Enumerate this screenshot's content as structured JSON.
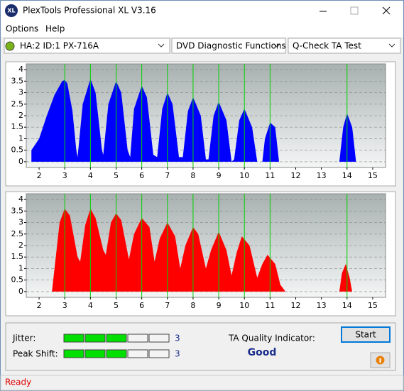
{
  "window": {
    "app_icon": "XL",
    "title": "PlexTools Professional XL V3.16",
    "menu": [
      "Options",
      "Help"
    ],
    "dropdowns": [
      "HA:2 ID:1  PX-716A",
      "DVD Diagnostic Functions",
      "Q-Check TA Test"
    ]
  },
  "chart_data": [
    {
      "type": "area",
      "color": "#0000ff",
      "marker_color": "#00d000",
      "grid": true,
      "xlim": [
        1.5,
        15.5
      ],
      "ylim": [
        -0.25,
        4.25
      ],
      "xticks": [
        2,
        3,
        4,
        5,
        6,
        7,
        8,
        9,
        10,
        11,
        12,
        13,
        14,
        15
      ],
      "yticks": [
        0,
        0.5,
        1,
        1.5,
        2,
        2.5,
        3,
        3.5,
        4
      ],
      "markers": [
        3,
        4,
        5,
        6,
        7,
        8,
        9,
        10,
        11,
        14
      ],
      "x": [
        1.7,
        2.0,
        2.3,
        2.6,
        2.9,
        3.0,
        3.1,
        3.3,
        3.45,
        3.5,
        3.7,
        4.0,
        4.2,
        4.45,
        4.5,
        4.7,
        5.0,
        5.2,
        5.45,
        5.55,
        5.7,
        6.0,
        6.2,
        6.45,
        6.6,
        6.8,
        7.0,
        7.2,
        7.45,
        7.6,
        7.8,
        8.0,
        8.3,
        8.5,
        8.6,
        8.8,
        9.0,
        9.3,
        9.5,
        9.6,
        9.8,
        10.0,
        10.3,
        10.5,
        10.7,
        10.8,
        11.0,
        11.2,
        11.35,
        13.7,
        13.85,
        14.0,
        14.2,
        14.35
      ],
      "values": [
        0.5,
        1.0,
        2.0,
        2.9,
        3.5,
        3.55,
        3.4,
        2.2,
        0.5,
        0.2,
        2.5,
        3.6,
        3.0,
        0.5,
        0.3,
        2.5,
        3.5,
        3.0,
        0.5,
        0.2,
        2.3,
        3.3,
        2.8,
        0.3,
        0.2,
        2.3,
        3.0,
        2.5,
        0.2,
        0.2,
        2.2,
        2.8,
        2.0,
        0.1,
        0.1,
        2.0,
        2.6,
        1.8,
        0,
        0.1,
        1.8,
        2.3,
        1.5,
        0,
        0,
        1.0,
        1.7,
        1.5,
        0,
        0,
        1.5,
        2.1,
        1.5,
        0
      ]
    },
    {
      "type": "area",
      "color": "#ff0000",
      "marker_color": "#00d000",
      "grid": true,
      "xlim": [
        1.5,
        15.5
      ],
      "ylim": [
        -0.25,
        4.25
      ],
      "xticks": [
        2,
        3,
        4,
        5,
        6,
        7,
        8,
        9,
        10,
        11,
        12,
        13,
        14,
        15
      ],
      "yticks": [
        0,
        0.5,
        1,
        1.5,
        2,
        2.5,
        3,
        3.5,
        4
      ],
      "markers": [
        3,
        4,
        5,
        6,
        7,
        8,
        9,
        10,
        11,
        14
      ],
      "x": [
        2.5,
        2.6,
        2.8,
        3.0,
        3.2,
        3.5,
        3.6,
        3.8,
        4.0,
        4.2,
        4.5,
        4.6,
        4.8,
        5.0,
        5.2,
        5.5,
        5.7,
        6.0,
        6.3,
        6.5,
        6.7,
        7.0,
        7.3,
        7.5,
        7.7,
        8.0,
        8.2,
        8.5,
        8.7,
        9.0,
        9.3,
        9.5,
        9.7,
        9.9,
        10.2,
        10.5,
        10.7,
        10.9,
        11.2,
        11.4,
        11.6,
        13.7,
        13.8,
        13.95,
        14.1,
        14.2
      ],
      "values": [
        0,
        1.0,
        3.0,
        3.6,
        3.3,
        1.5,
        1.3,
        2.9,
        3.6,
        3.2,
        1.8,
        1.6,
        3.0,
        3.4,
        3.1,
        1.4,
        2.5,
        3.2,
        2.8,
        1.3,
        2.3,
        3.0,
        2.4,
        1.0,
        2.0,
        2.8,
        2.5,
        1.0,
        1.8,
        2.6,
        1.8,
        0.7,
        1.7,
        2.4,
        2.0,
        0.6,
        1.2,
        1.6,
        1.2,
        0.3,
        0,
        0,
        0.8,
        1.2,
        0.6,
        0
      ]
    }
  ],
  "panel": {
    "jitter_label": "Jitter:",
    "jitter": 3,
    "peak_shift_label": "Peak Shift:",
    "peak_shift": 3,
    "ta_label": "TA Quality Indicator:",
    "ta_value": "Good",
    "start": "Start"
  },
  "status": "Ready"
}
